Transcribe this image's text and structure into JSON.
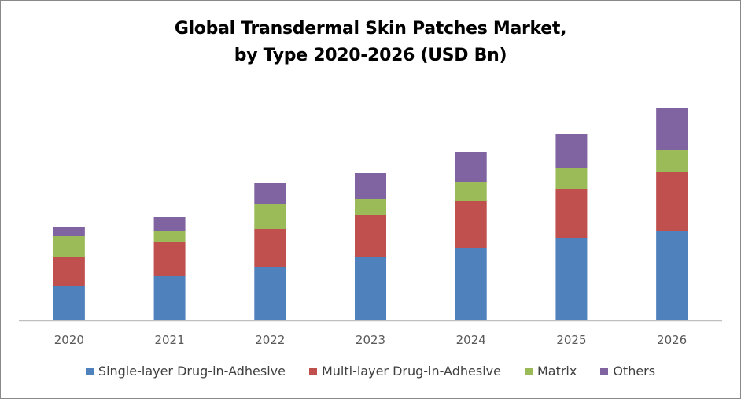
{
  "chart_data": {
    "type": "bar",
    "stacked": true,
    "title_line1": "Global Transdermal Skin Patches Market,",
    "title_line2": "by Type 2020-2026 (USD Bn)",
    "categories": [
      "2020",
      "2021",
      "2022",
      "2023",
      "2024",
      "2025",
      "2026"
    ],
    "series": [
      {
        "name": "Single-layer Drug-in-Adhesive",
        "color": "#4f81bd",
        "values": [
          4.4,
          5.6,
          6.8,
          8.0,
          9.2,
          10.4,
          11.4
        ]
      },
      {
        "name": "Multi-layer Drug-in-Adhesive",
        "color": "#c0504d",
        "values": [
          3.7,
          4.3,
          4.8,
          5.4,
          6.0,
          6.3,
          7.4
        ]
      },
      {
        "name": "Matrix",
        "color": "#9bbb59",
        "values": [
          2.6,
          1.4,
          3.2,
          2.0,
          2.4,
          2.6,
          2.9
        ]
      },
      {
        "name": "Others",
        "color": "#8064a2",
        "values": [
          1.2,
          1.8,
          2.7,
          3.3,
          3.8,
          4.4,
          5.3
        ]
      }
    ],
    "ylim": [
      0,
      28
    ],
    "y_axis_shown": false,
    "grid": false,
    "legend_position": "bottom"
  }
}
